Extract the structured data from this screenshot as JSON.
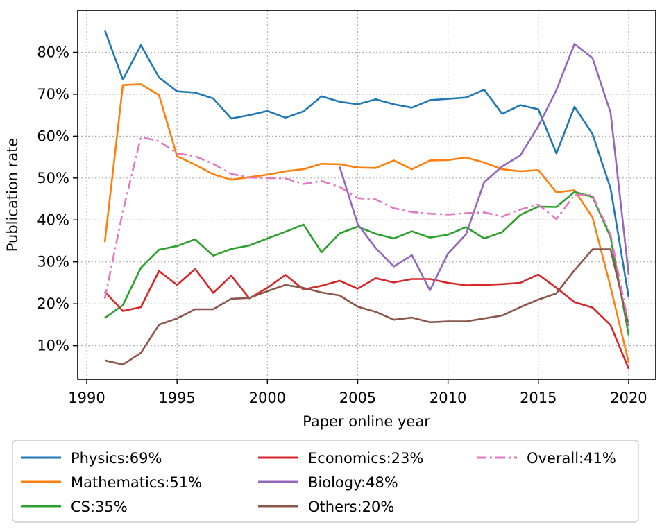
{
  "chart_data": {
    "type": "line",
    "xlabel": "Paper online year",
    "ylabel": "Publication rate",
    "xlim": [
      1989.5,
      2021.5
    ],
    "ylim": [
      0.02,
      0.9
    ],
    "x_ticks": [
      1990,
      1995,
      2000,
      2005,
      2010,
      2015,
      2020
    ],
    "x_tick_labels": [
      "1990",
      "1995",
      "2000",
      "2005",
      "2010",
      "2015",
      "2020"
    ],
    "y_ticks": [
      0.1,
      0.2,
      0.3,
      0.4,
      0.5,
      0.6,
      0.7,
      0.8
    ],
    "y_tick_labels": [
      "10%",
      "20%",
      "30%",
      "40%",
      "50%",
      "60%",
      "70%",
      "80%"
    ],
    "grid": true,
    "legend_position": "bottom-outside",
    "series": [
      {
        "name": "Physics:69%",
        "color": "#1f77b4",
        "style": "solid",
        "x": [
          1991,
          1992,
          1993,
          1994,
          1995,
          1996,
          1997,
          1998,
          1999,
          2000,
          2001,
          2002,
          2003,
          2004,
          2005,
          2006,
          2007,
          2008,
          2009,
          2010,
          2011,
          2012,
          2013,
          2014,
          2015,
          2016,
          2017,
          2018,
          2019,
          2020
        ],
        "y": [
          0.853,
          0.735,
          0.817,
          0.74,
          0.707,
          0.704,
          0.69,
          0.642,
          0.65,
          0.66,
          0.644,
          0.659,
          0.695,
          0.682,
          0.676,
          0.688,
          0.676,
          0.668,
          0.686,
          0.689,
          0.692,
          0.711,
          0.653,
          0.674,
          0.664,
          0.559,
          0.67,
          0.605,
          0.475,
          0.215
        ]
      },
      {
        "name": "Mathematics:51%",
        "color": "#ff7f0e",
        "style": "solid",
        "x": [
          1991,
          1992,
          1993,
          1994,
          1995,
          1996,
          1997,
          1998,
          1999,
          2000,
          2001,
          2002,
          2003,
          2004,
          2005,
          2006,
          2007,
          2008,
          2009,
          2010,
          2011,
          2012,
          2013,
          2014,
          2015,
          2016,
          2017,
          2018,
          2019,
          2020
        ],
        "y": [
          0.347,
          0.722,
          0.724,
          0.698,
          0.552,
          0.532,
          0.509,
          0.496,
          0.502,
          0.508,
          0.516,
          0.521,
          0.534,
          0.533,
          0.525,
          0.524,
          0.542,
          0.521,
          0.542,
          0.543,
          0.549,
          0.537,
          0.521,
          0.516,
          0.519,
          0.466,
          0.471,
          0.406,
          0.24,
          0.06
        ]
      },
      {
        "name": "CS:35%",
        "color": "#2ca02c",
        "style": "solid",
        "x": [
          1991,
          1992,
          1993,
          1994,
          1995,
          1996,
          1997,
          1998,
          1999,
          2000,
          2001,
          2002,
          2003,
          2004,
          2005,
          2006,
          2007,
          2008,
          2009,
          2010,
          2011,
          2012,
          2013,
          2014,
          2015,
          2016,
          2017,
          2018,
          2019,
          2020
        ],
        "y": [
          0.166,
          0.197,
          0.286,
          0.329,
          0.338,
          0.354,
          0.315,
          0.331,
          0.339,
          0.356,
          0.372,
          0.389,
          0.323,
          0.368,
          0.384,
          0.367,
          0.356,
          0.373,
          0.358,
          0.365,
          0.383,
          0.356,
          0.371,
          0.412,
          0.432,
          0.431,
          0.467,
          0.455,
          0.359,
          0.125
        ]
      },
      {
        "name": "Economics:23%",
        "color": "#d62728",
        "style": "solid",
        "x": [
          1991,
          1992,
          1993,
          1994,
          1995,
          1996,
          1997,
          1998,
          1999,
          2000,
          2001,
          2002,
          2003,
          2004,
          2005,
          2006,
          2007,
          2008,
          2009,
          2010,
          2011,
          2012,
          2013,
          2014,
          2015,
          2016,
          2017,
          2018,
          2019,
          2020
        ],
        "y": [
          0.229,
          0.183,
          0.192,
          0.278,
          0.245,
          0.283,
          0.226,
          0.267,
          0.213,
          0.238,
          0.269,
          0.234,
          0.243,
          0.255,
          0.236,
          0.261,
          0.251,
          0.259,
          0.259,
          0.25,
          0.244,
          0.245,
          0.247,
          0.25,
          0.27,
          0.238,
          0.204,
          0.191,
          0.149,
          0.045
        ]
      },
      {
        "name": "Biology:48%",
        "color": "#9467bd",
        "style": "solid",
        "x": [
          2004,
          2005,
          2006,
          2007,
          2008,
          2009,
          2010,
          2011,
          2012,
          2013,
          2014,
          2015,
          2016,
          2017,
          2018,
          2019,
          2020
        ],
        "y": [
          0.527,
          0.39,
          0.333,
          0.289,
          0.316,
          0.232,
          0.32,
          0.366,
          0.49,
          0.528,
          0.554,
          0.624,
          0.71,
          0.82,
          0.786,
          0.656,
          0.27
        ]
      },
      {
        "name": "Others:20%",
        "color": "#8c564b",
        "style": "solid",
        "x": [
          1991,
          1992,
          1993,
          1994,
          1995,
          1996,
          1997,
          1998,
          1999,
          2000,
          2001,
          2002,
          2003,
          2004,
          2005,
          2006,
          2007,
          2008,
          2009,
          2010,
          2011,
          2012,
          2013,
          2014,
          2015,
          2016,
          2017,
          2018,
          2019,
          2020
        ],
        "y": [
          0.065,
          0.055,
          0.083,
          0.15,
          0.165,
          0.187,
          0.187,
          0.212,
          0.214,
          0.23,
          0.245,
          0.238,
          0.227,
          0.22,
          0.193,
          0.181,
          0.162,
          0.167,
          0.156,
          0.158,
          0.158,
          0.165,
          0.172,
          0.192,
          0.21,
          0.225,
          0.28,
          0.33,
          0.33,
          0.148
        ]
      },
      {
        "name": "Overall:41%",
        "color": "#e377c2",
        "style": "dashdot",
        "x": [
          1991,
          1992,
          1993,
          1994,
          1995,
          1996,
          1997,
          1998,
          1999,
          2000,
          2001,
          2002,
          2003,
          2004,
          2005,
          2006,
          2007,
          2008,
          2009,
          2010,
          2011,
          2012,
          2013,
          2014,
          2015,
          2016,
          2017,
          2018,
          2019,
          2020
        ],
        "y": [
          0.212,
          0.421,
          0.598,
          0.588,
          0.559,
          0.552,
          0.534,
          0.51,
          0.501,
          0.5,
          0.499,
          0.486,
          0.493,
          0.479,
          0.452,
          0.449,
          0.428,
          0.419,
          0.415,
          0.413,
          0.416,
          0.418,
          0.408,
          0.425,
          0.437,
          0.402,
          0.46,
          0.459,
          0.365,
          0.15
        ]
      }
    ]
  }
}
